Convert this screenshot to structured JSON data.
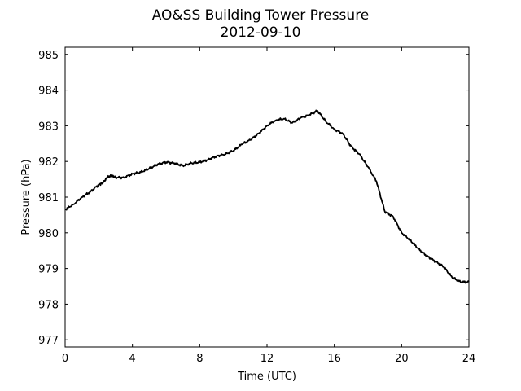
{
  "chart_data": {
    "type": "line",
    "title": "AO&SS Building Tower Pressure",
    "subtitle": "2012-09-10",
    "xlabel": "Time (UTC)",
    "ylabel": "Pressure (hPa)",
    "xlim": [
      0,
      24
    ],
    "ylim": [
      976.8,
      985.2
    ],
    "xticks": [
      0,
      4,
      8,
      12,
      16,
      20,
      24
    ],
    "yticks": [
      977,
      978,
      979,
      980,
      981,
      982,
      983,
      984,
      985
    ],
    "grid": false,
    "line_color": "#000000",
    "series": [
      {
        "x": [
          0,
          0.5,
          1,
          1.5,
          2,
          2.25,
          2.5,
          2.75,
          3,
          3.5,
          4,
          4.5,
          5,
          5.5,
          6,
          6.5,
          7,
          7.5,
          8,
          8.5,
          9,
          9.5,
          10,
          10.5,
          11,
          11.5,
          12,
          12.5,
          13,
          13.5,
          14,
          14.5,
          15,
          15.5,
          16,
          16.5,
          17,
          17.5,
          18,
          18.5,
          19,
          19.5,
          20,
          20.5,
          21,
          21.5,
          22,
          22.5,
          23,
          23.5,
          24
        ],
        "y": [
          980.65,
          980.8,
          981.0,
          981.15,
          981.35,
          981.4,
          981.55,
          981.6,
          981.55,
          981.55,
          981.65,
          981.7,
          981.8,
          981.92,
          981.98,
          981.95,
          981.88,
          981.95,
          981.98,
          982.05,
          982.15,
          982.2,
          982.3,
          982.48,
          982.6,
          982.78,
          983.0,
          983.15,
          983.2,
          983.08,
          983.22,
          983.3,
          983.42,
          983.12,
          982.9,
          982.78,
          982.42,
          982.2,
          981.85,
          981.45,
          980.6,
          980.45,
          980.0,
          979.8,
          979.55,
          979.35,
          979.2,
          979.05,
          978.75,
          978.62,
          978.62
        ]
      }
    ]
  }
}
